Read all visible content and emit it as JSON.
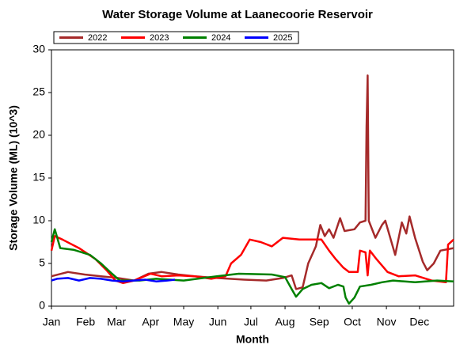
{
  "chart_data": {
    "type": "line",
    "title": "Water Storage Volume at Laanecoorie Reservoir",
    "x_label": "Month",
    "y_label": "Storage Volume (ML) (10^3)",
    "xlim": [
      0,
      365
    ],
    "xticks": [
      {
        "value": 0,
        "label": "Jan"
      },
      {
        "value": 31,
        "label": "Feb"
      },
      {
        "value": 59,
        "label": "Mar"
      },
      {
        "value": 90,
        "label": "Apr"
      },
      {
        "value": 120,
        "label": "May"
      },
      {
        "value": 151,
        "label": "Jun"
      },
      {
        "value": 181,
        "label": "Jul"
      },
      {
        "value": 212,
        "label": "Aug"
      },
      {
        "value": 243,
        "label": "Sep"
      },
      {
        "value": 273,
        "label": "Oct"
      },
      {
        "value": 304,
        "label": "Nov"
      },
      {
        "value": 334,
        "label": "Dec"
      }
    ],
    "ylim": [
      0,
      30
    ],
    "yticks": [
      0,
      5,
      10,
      15,
      20,
      25,
      30
    ],
    "grid": false,
    "legend": "top-left",
    "series": [
      {
        "name": "2022",
        "color": "#a52a2a",
        "x": [
          0,
          15,
          30,
          45,
          60,
          75,
          88,
          100,
          115,
          130,
          150,
          175,
          195,
          210,
          218,
          222,
          228,
          233,
          240,
          244,
          248,
          252,
          256,
          262,
          266,
          275,
          280,
          285,
          286,
          287,
          288,
          294,
          300,
          303,
          312,
          318,
          322,
          325,
          330,
          337,
          341,
          347,
          353,
          365
        ],
        "values": [
          3.5,
          4.0,
          3.7,
          3.5,
          3.3,
          3.0,
          3.8,
          4.0,
          3.7,
          3.5,
          3.3,
          3.1,
          3.0,
          3.3,
          3.6,
          2.0,
          2.2,
          5.0,
          7.0,
          9.5,
          8.2,
          9.0,
          8.0,
          10.3,
          8.8,
          9.0,
          9.8,
          10.0,
          21,
          27,
          10,
          8,
          9.5,
          10,
          6.0,
          9.8,
          8.5,
          10.5,
          8,
          5.2,
          4.2,
          5,
          6.5,
          6.8
        ]
      },
      {
        "name": "2023",
        "color": "#ff0000",
        "x": [
          0,
          3,
          10,
          25,
          40,
          50,
          58,
          65,
          75,
          90,
          100,
          115,
          130,
          145,
          158,
          163,
          172,
          180,
          190,
          200,
          210,
          225,
          245,
          252,
          258,
          265,
          270,
          278,
          280,
          285,
          287,
          289,
          295,
          305,
          315,
          330,
          345,
          358,
          360,
          365
        ],
        "values": [
          6.5,
          8.2,
          7.8,
          6.8,
          5.5,
          4.2,
          3.0,
          2.7,
          3.0,
          3.8,
          3.5,
          3.6,
          3.5,
          3.2,
          3.5,
          5.0,
          6.0,
          7.8,
          7.5,
          7.0,
          8.0,
          7.8,
          7.8,
          6.5,
          5.5,
          4.5,
          4.0,
          4.0,
          6.5,
          6.3,
          3.6,
          6.5,
          5.5,
          4.0,
          3.5,
          3.6,
          3.0,
          2.8,
          7.2,
          7.8
        ]
      },
      {
        "name": "2024",
        "color": "#008000",
        "x": [
          0,
          3,
          8,
          20,
          35,
          45,
          55,
          62,
          80,
          95,
          120,
          150,
          170,
          200,
          212,
          218,
          222,
          228,
          236,
          245,
          252,
          260,
          265,
          267,
          270,
          275,
          280,
          290,
          300,
          310,
          330,
          350,
          365
        ],
        "values": [
          7.5,
          9.0,
          6.8,
          6.6,
          6.0,
          5.0,
          3.8,
          3.0,
          3.0,
          3.2,
          3.0,
          3.5,
          3.8,
          3.7,
          3.4,
          2.0,
          1.1,
          2.0,
          2.5,
          2.7,
          2.1,
          2.5,
          2.3,
          1.0,
          0.3,
          1.0,
          2.3,
          2.5,
          2.8,
          3.0,
          2.8,
          3.0,
          2.9
        ]
      },
      {
        "name": "2025",
        "color": "#0000ff",
        "x": [
          0,
          5,
          15,
          25,
          35,
          45,
          55,
          65,
          75,
          85,
          95,
          105,
          112
        ],
        "values": [
          3.0,
          3.2,
          3.3,
          3.0,
          3.3,
          3.2,
          3.0,
          2.9,
          3.0,
          3.1,
          2.9,
          3.0,
          3.1
        ]
      }
    ]
  }
}
